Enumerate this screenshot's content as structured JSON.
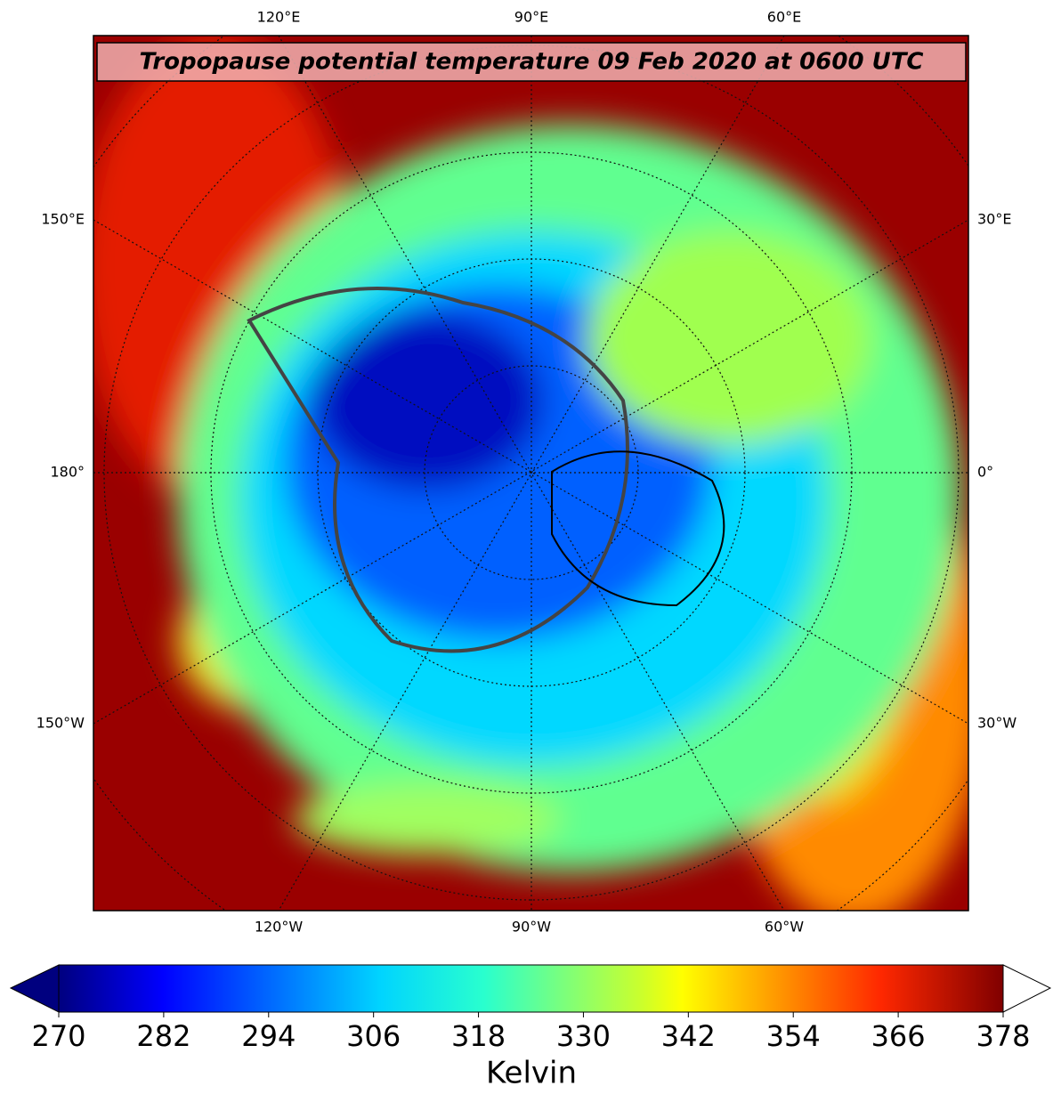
{
  "title": "Tropopause potential temperature 09 Feb 2020 at 0600 UTC",
  "map": {
    "top_labels": [
      "120°E",
      "90°E",
      "60°E"
    ],
    "left_labels": [
      "150°E",
      "180°",
      "150°W"
    ],
    "right_labels": [
      "30°E",
      "0°",
      "30°W"
    ],
    "bottom_labels": [
      "120°W",
      "90°W",
      "60°W"
    ]
  },
  "colorbar": {
    "label": "Kelvin",
    "lim": [
      270,
      378
    ],
    "ticks": [
      270,
      282,
      294,
      306,
      318,
      330,
      342,
      354,
      366,
      378
    ]
  }
}
